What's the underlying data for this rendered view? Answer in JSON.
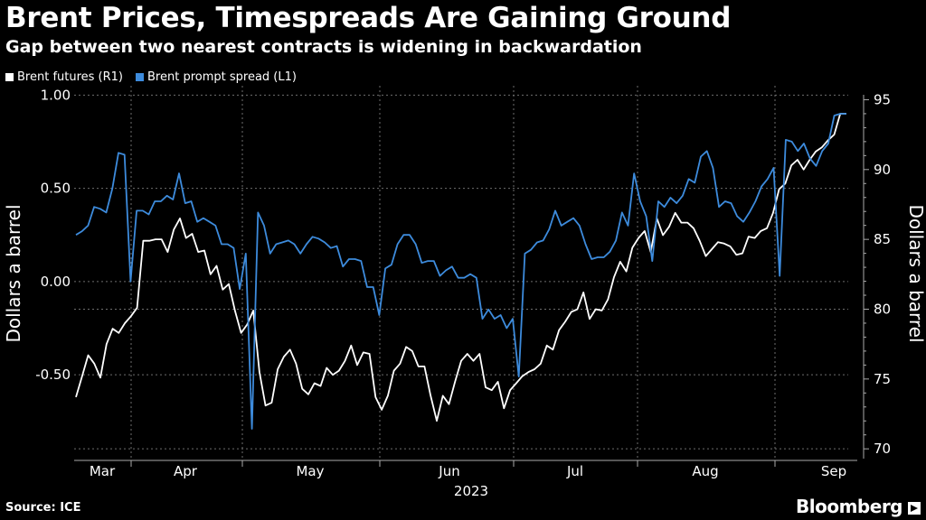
{
  "title": "Brent Prices, Timespreads Are Gaining Ground",
  "subtitle": "Gap between two nearest contracts is widening in backwardation",
  "legend": {
    "futures": "Brent futures (R1)",
    "spread": "Brent prompt spread (L1)"
  },
  "footer": {
    "source": "Source: ICE",
    "brand": "Bloomberg"
  },
  "colors": {
    "futures": "#ffffff",
    "spread": "#3d8bdc",
    "grid": "#6e6e6e",
    "background": "#000000"
  },
  "chart_data": {
    "type": "line",
    "title": "Brent Prices, Timespreads Are Gaining Ground",
    "xlabel": "2023",
    "ylabel_left": "Dollars a barrel",
    "ylabel_right": "Dollars a barrel",
    "ylim_left": [
      -0.95,
      1.05
    ],
    "ylim_right": [
      69.3,
      96.0
    ],
    "yticks_left": [
      "1.00",
      "0.50",
      "0.00",
      "-0.50"
    ],
    "yticks_left_values": [
      1.0,
      0.5,
      0.0,
      -0.5
    ],
    "yticks_right": [
      "95",
      "90",
      "85",
      "80",
      "75",
      "70"
    ],
    "yticks_right_values": [
      95,
      90,
      85,
      80,
      75,
      70
    ],
    "xticks": [
      "Mar",
      "Apr",
      "May",
      "Jun",
      "Jul",
      "Aug",
      "Sep"
    ],
    "x_year_label": "2023",
    "grid": true,
    "series": [
      {
        "name": "Brent futures (R1)",
        "axis": "right",
        "values": [
          73.7,
          75.2,
          76.7,
          76.1,
          75.1,
          77.5,
          78.6,
          78.3,
          79.0,
          79.5,
          80.1,
          84.9,
          84.9,
          85.0,
          85.0,
          84.1,
          85.7,
          86.5,
          85.1,
          85.4,
          84.1,
          84.2,
          82.5,
          83.1,
          81.4,
          81.8,
          79.9,
          78.3,
          78.9,
          79.9,
          75.5,
          73.1,
          73.3,
          75.7,
          76.6,
          77.1,
          76.1,
          74.3,
          73.9,
          74.7,
          74.5,
          75.8,
          75.3,
          75.6,
          76.3,
          77.4,
          76.0,
          76.9,
          76.8,
          73.7,
          72.8,
          73.8,
          75.6,
          76.1,
          77.3,
          77.0,
          75.9,
          75.9,
          73.8,
          72.0,
          73.8,
          73.2,
          74.8,
          76.3,
          76.8,
          76.3,
          76.8,
          74.4,
          74.2,
          74.8,
          72.9,
          74.2,
          74.7,
          75.2,
          75.5,
          75.7,
          76.1,
          77.4,
          77.1,
          78.5,
          79.1,
          79.8,
          80.0,
          81.2,
          79.3,
          80.0,
          79.9,
          80.7,
          82.3,
          83.4,
          82.7,
          84.4,
          85.1,
          85.6,
          84.1,
          86.5,
          85.3,
          85.9,
          86.9,
          86.2,
          86.2,
          85.8,
          84.9,
          83.8,
          84.3,
          84.8,
          84.7,
          84.5,
          83.9,
          84.0,
          85.2,
          85.1,
          85.6,
          85.8,
          86.9,
          88.6,
          89.0,
          90.3,
          90.7,
          90.0,
          90.7,
          91.3,
          91.6,
          92.1,
          92.5,
          94.0,
          94.0
        ]
      },
      {
        "name": "Brent prompt spread (L1)",
        "axis": "left",
        "values": [
          0.25,
          0.27,
          0.3,
          0.4,
          0.39,
          0.37,
          0.5,
          0.69,
          0.68,
          0.0,
          0.38,
          0.38,
          0.36,
          0.43,
          0.43,
          0.46,
          0.44,
          0.58,
          0.42,
          0.43,
          0.32,
          0.34,
          0.32,
          0.3,
          0.2,
          0.2,
          0.18,
          -0.04,
          0.15,
          -0.79,
          0.37,
          0.3,
          0.15,
          0.2,
          0.21,
          0.22,
          0.2,
          0.15,
          0.2,
          0.24,
          0.23,
          0.21,
          0.18,
          0.19,
          0.08,
          0.12,
          0.12,
          0.11,
          -0.03,
          -0.03,
          -0.18,
          0.07,
          0.09,
          0.2,
          0.25,
          0.25,
          0.2,
          0.1,
          0.11,
          0.11,
          0.03,
          0.06,
          0.08,
          0.02,
          0.02,
          0.04,
          0.02,
          -0.2,
          -0.15,
          -0.2,
          -0.18,
          -0.25,
          -0.2,
          -0.51,
          0.15,
          0.17,
          0.21,
          0.22,
          0.28,
          0.38,
          0.3,
          0.32,
          0.34,
          0.3,
          0.2,
          0.12,
          0.13,
          0.13,
          0.16,
          0.22,
          0.37,
          0.3,
          0.58,
          0.43,
          0.35,
          0.11,
          0.43,
          0.4,
          0.45,
          0.42,
          0.46,
          0.55,
          0.53,
          0.67,
          0.7,
          0.61,
          0.4,
          0.43,
          0.42,
          0.35,
          0.32,
          0.37,
          0.43,
          0.51,
          0.55,
          0.61,
          0.03,
          0.76,
          0.75,
          0.7,
          0.74,
          0.66,
          0.62,
          0.7,
          0.74,
          0.89,
          0.9,
          0.9
        ]
      }
    ]
  }
}
